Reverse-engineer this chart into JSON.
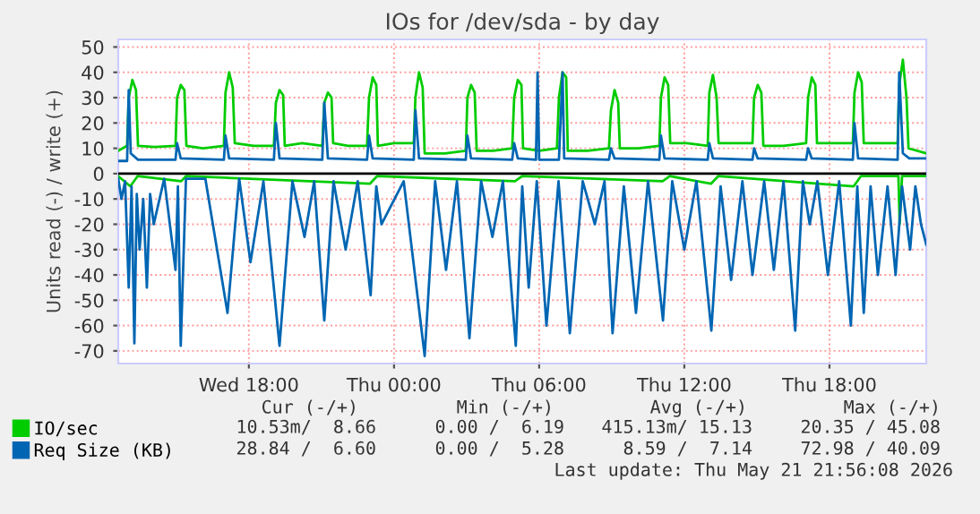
{
  "chart_data": {
    "type": "line",
    "title": "IOs for /dev/sda - by day",
    "ylabel": "Units read (-) / write (+)",
    "xlim": [
      "2026-05-20T12:36",
      "2026-05-21T22:00"
    ],
    "xticks": [
      {
        "value": "2026-05-20T18:00",
        "label": "Wed 18:00"
      },
      {
        "value": "2026-05-21T00:00",
        "label": "Thu 00:00"
      },
      {
        "value": "2026-05-21T06:00",
        "label": "Thu 06:00"
      },
      {
        "value": "2026-05-21T12:00",
        "label": "Thu 12:00"
      },
      {
        "value": "2026-05-21T18:00",
        "label": "Thu 18:00"
      }
    ],
    "ylim": [
      -75,
      53
    ],
    "yticks": [
      -70,
      -60,
      -50,
      -40,
      -30,
      -20,
      -10,
      0,
      10,
      20,
      30,
      40,
      50
    ],
    "grid": true,
    "legend": "bottom left",
    "marker": "none",
    "line_style": "solid",
    "ref_lines": [
      {
        "axis": "y",
        "value": 0,
        "color": "#000000"
      }
    ],
    "series": [
      {
        "name": "IO/sec",
        "color": "#00cc00",
        "x": [
          "2026-05-20T12:36",
          "2026-05-20T12:58",
          "2026-05-20T13:02",
          "2026-05-20T13:11",
          "2026-05-20T13:20",
          "2026-05-20T13:25",
          "2026-05-20T14:06",
          "2026-05-20T14:58",
          "2026-05-20T15:02",
          "2026-05-20T15:11",
          "2026-05-20T15:20",
          "2026-05-20T15:25",
          "2026-05-20T16:06",
          "2026-05-20T16:58",
          "2026-05-20T17:02",
          "2026-05-20T17:11",
          "2026-05-20T17:20",
          "2026-05-20T17:25",
          "2026-05-20T18:12",
          "2026-05-20T19:02",
          "2026-05-20T19:07",
          "2026-05-20T19:16",
          "2026-05-20T19:25",
          "2026-05-20T19:29",
          "2026-05-20T20:12",
          "2026-05-20T21:02",
          "2026-05-20T21:07",
          "2026-05-20T21:16",
          "2026-05-20T21:25",
          "2026-05-20T21:29",
          "2026-05-20T22:06",
          "2026-05-20T22:53",
          "2026-05-20T22:58",
          "2026-05-20T23:07",
          "2026-05-20T23:16",
          "2026-05-20T23:20",
          "2026-05-21T00:00",
          "2026-05-21T00:49",
          "2026-05-21T00:53",
          "2026-05-21T01:02",
          "2026-05-21T01:11",
          "2026-05-21T01:16",
          "2026-05-21T02:06",
          "2026-05-21T02:58",
          "2026-05-21T03:02",
          "2026-05-21T03:11",
          "2026-05-21T03:20",
          "2026-05-21T03:25",
          "2026-05-21T04:06",
          "2026-05-21T04:53",
          "2026-05-21T04:58",
          "2026-05-21T05:07",
          "2026-05-21T05:16",
          "2026-05-21T05:20",
          "2026-05-21T06:00",
          "2026-05-21T06:44",
          "2026-05-21T06:49",
          "2026-05-21T06:58",
          "2026-05-21T07:07",
          "2026-05-21T07:11",
          "2026-05-21T08:00",
          "2026-05-21T08:53",
          "2026-05-21T08:58",
          "2026-05-21T09:07",
          "2026-05-21T09:16",
          "2026-05-21T09:20",
          "2026-05-21T10:06",
          "2026-05-21T10:58",
          "2026-05-21T11:02",
          "2026-05-21T11:11",
          "2026-05-21T11:20",
          "2026-05-21T11:25",
          "2026-05-21T12:06",
          "2026-05-21T12:58",
          "2026-05-21T13:02",
          "2026-05-21T13:11",
          "2026-05-21T13:20",
          "2026-05-21T13:25",
          "2026-05-21T14:06",
          "2026-05-21T14:49",
          "2026-05-21T14:53",
          "2026-05-21T15:02",
          "2026-05-21T15:11",
          "2026-05-21T15:16",
          "2026-05-21T16:06",
          "2026-05-21T17:02",
          "2026-05-21T17:07",
          "2026-05-21T17:16",
          "2026-05-21T17:25",
          "2026-05-21T17:29",
          "2026-05-21T18:12",
          "2026-05-21T18:58",
          "2026-05-21T19:02",
          "2026-05-21T19:11",
          "2026-05-21T19:20",
          "2026-05-21T19:25",
          "2026-05-21T20:06",
          "2026-05-21T20:49",
          "2026-05-21T20:53",
          "2026-05-21T21:02",
          "2026-05-21T21:11",
          "2026-05-21T21:16",
          "2026-05-21T22:00"
        ],
        "values": [
          9,
          11,
          30,
          37,
          33,
          11,
          10.5,
          11,
          30,
          35,
          33,
          11,
          10,
          11,
          32,
          40,
          34,
          12,
          11,
          11,
          28,
          33,
          31,
          11,
          12,
          11,
          28,
          32,
          30,
          12,
          11,
          11,
          30,
          38,
          35,
          11,
          12,
          12,
          30,
          40,
          34,
          8,
          8,
          9,
          30,
          35,
          32,
          9,
          9,
          10,
          30,
          37,
          35,
          10,
          9,
          10,
          30,
          40,
          38,
          9,
          9,
          10,
          25,
          33,
          28,
          10,
          10,
          11,
          30,
          38,
          35,
          12,
          12,
          11,
          32,
          39,
          30,
          12,
          12,
          12,
          30,
          35,
          32,
          11,
          11,
          12,
          30,
          38,
          35,
          12,
          12,
          12,
          32,
          40,
          36,
          12,
          12,
          12,
          35,
          45,
          30,
          10,
          8
        ]
      },
      {
        "color": "#00cc00",
        "x": [
          "2026-05-20T12:36",
          "2026-05-20T13:06",
          "2026-05-20T13:24",
          "2026-05-20T15:12",
          "2026-05-20T15:24",
          "2026-05-20T23:00",
          "2026-05-20T23:18",
          "2026-05-21T05:00",
          "2026-05-21T05:18",
          "2026-05-21T11:06",
          "2026-05-21T11:24",
          "2026-05-21T13:06",
          "2026-05-21T13:24",
          "2026-05-21T19:00",
          "2026-05-21T19:18",
          "2026-05-21T20:51",
          "2026-05-21T20:54",
          "2026-05-21T21:00",
          "2026-05-21T22:00"
        ],
        "values": [
          -1,
          -5,
          -1,
          -3,
          -1,
          -4,
          -1,
          -3,
          -1,
          -3,
          -1,
          -4,
          -1,
          -5,
          -1,
          -1,
          -20,
          -1,
          -1
        ]
      },
      {
        "name": "Req Size (KB)",
        "color": "#0066b3",
        "x": [
          "2026-05-20T12:36",
          "2026-05-20T12:58",
          "2026-05-20T13:02",
          "2026-05-20T13:07",
          "2026-05-20T13:25",
          "2026-05-20T14:58",
          "2026-05-20T15:02",
          "2026-05-20T15:11",
          "2026-05-20T16:58",
          "2026-05-20T17:02",
          "2026-05-20T17:11",
          "2026-05-20T19:02",
          "2026-05-20T19:07",
          "2026-05-20T19:16",
          "2026-05-20T21:02",
          "2026-05-20T21:07",
          "2026-05-20T21:16",
          "2026-05-20T22:53",
          "2026-05-20T22:58",
          "2026-05-20T23:07",
          "2026-05-21T00:49",
          "2026-05-21T00:53",
          "2026-05-21T01:02",
          "2026-05-21T02:58",
          "2026-05-21T03:02",
          "2026-05-21T03:11",
          "2026-05-21T04:53",
          "2026-05-21T04:58",
          "2026-05-21T05:07",
          "2026-05-21T05:52",
          "2026-05-21T05:56",
          "2026-05-21T06:00",
          "2026-05-21T06:49",
          "2026-05-21T06:58",
          "2026-05-21T07:02",
          "2026-05-21T08:53",
          "2026-05-21T08:58",
          "2026-05-21T09:07",
          "2026-05-21T10:58",
          "2026-05-21T11:02",
          "2026-05-21T11:11",
          "2026-05-21T12:58",
          "2026-05-21T13:02",
          "2026-05-21T13:11",
          "2026-05-21T14:49",
          "2026-05-21T14:53",
          "2026-05-21T15:02",
          "2026-05-21T17:02",
          "2026-05-21T17:07",
          "2026-05-21T17:16",
          "2026-05-21T18:58",
          "2026-05-21T19:02",
          "2026-05-21T19:11",
          "2026-05-21T20:49",
          "2026-05-21T20:53",
          "2026-05-21T21:02",
          "2026-05-21T21:18",
          "2026-05-21T22:00"
        ],
        "values": [
          5,
          5,
          33,
          8,
          5.5,
          5.5,
          12,
          6,
          5.5,
          15,
          6,
          5.5,
          20,
          6,
          5.5,
          28,
          6,
          5.5,
          15,
          6,
          5.5,
          25,
          6,
          5.5,
          15,
          6,
          5.5,
          12,
          6,
          5.5,
          40,
          5.5,
          5.5,
          40,
          6,
          5.5,
          10,
          6,
          5.5,
          15,
          6,
          5.5,
          12,
          6,
          5.5,
          10,
          6,
          5.5,
          10,
          6,
          5.5,
          20,
          6,
          5.5,
          40,
          8,
          6,
          6
        ]
      },
      {
        "color": "#0066b3",
        "x": [
          "2026-05-20T12:36",
          "2026-05-20T12:44",
          "2026-05-20T12:53",
          "2026-05-20T13:02",
          "2026-05-20T13:09",
          "2026-05-20T13:16",
          "2026-05-20T13:22",
          "2026-05-20T13:29",
          "2026-05-20T13:38",
          "2026-05-20T13:47",
          "2026-05-20T13:55",
          "2026-05-20T14:04",
          "2026-05-20T14:30",
          "2026-05-20T14:58",
          "2026-05-20T15:04",
          "2026-05-20T15:11",
          "2026-05-20T15:24",
          "2026-05-20T16:12",
          "2026-05-20T17:07",
          "2026-05-20T17:36",
          "2026-05-20T18:04",
          "2026-05-20T18:36",
          "2026-05-20T19:16",
          "2026-05-20T19:48",
          "2026-05-20T20:18",
          "2026-05-20T20:42",
          "2026-05-20T21:07",
          "2026-05-20T21:30",
          "2026-05-20T22:00",
          "2026-05-20T22:30",
          "2026-05-20T23:02",
          "2026-05-20T23:16",
          "2026-05-20T23:29",
          "2026-05-21T00:24",
          "2026-05-21T01:16",
          "2026-05-21T01:42",
          "2026-05-21T02:09",
          "2026-05-21T02:36",
          "2026-05-21T03:07",
          "2026-05-21T03:36",
          "2026-05-21T04:04",
          "2026-05-21T04:30",
          "2026-05-21T05:02",
          "2026-05-21T05:18",
          "2026-05-21T05:34",
          "2026-05-21T05:54",
          "2026-05-21T06:18",
          "2026-05-21T06:48",
          "2026-05-21T07:16",
          "2026-05-21T07:48",
          "2026-05-21T08:18",
          "2026-05-21T08:42",
          "2026-05-21T09:02",
          "2026-05-21T09:30",
          "2026-05-21T10:00",
          "2026-05-21T10:30",
          "2026-05-21T11:07",
          "2026-05-21T11:30",
          "2026-05-21T12:00",
          "2026-05-21T12:30",
          "2026-05-21T13:07",
          "2026-05-21T13:30",
          "2026-05-21T13:56",
          "2026-05-21T14:24",
          "2026-05-21T14:49",
          "2026-05-21T15:18",
          "2026-05-21T15:42",
          "2026-05-21T16:06",
          "2026-05-21T16:35",
          "2026-05-21T16:54",
          "2026-05-21T17:11",
          "2026-05-21T17:30",
          "2026-05-21T17:56",
          "2026-05-21T18:24",
          "2026-05-21T18:53",
          "2026-05-21T19:09",
          "2026-05-21T19:25",
          "2026-05-21T19:42",
          "2026-05-21T20:00",
          "2026-05-21T20:24",
          "2026-05-21T20:44",
          "2026-05-21T21:00",
          "2026-05-21T21:20",
          "2026-05-21T21:33",
          "2026-05-21T21:47",
          "2026-05-21T22:00"
        ],
        "values": [
          -2,
          -10,
          -3,
          -45,
          -5,
          -67,
          -8,
          -30,
          -10,
          -45,
          -8,
          -20,
          -2,
          -38,
          -5,
          -68,
          -2,
          -2,
          -55,
          -2,
          -35,
          -3,
          -68,
          -3,
          -25,
          -3,
          -58,
          -3,
          -30,
          -3,
          -48,
          -5,
          -20,
          -3,
          -72,
          -3,
          -38,
          -3,
          -65,
          -3,
          -25,
          -3,
          -68,
          -5,
          -45,
          -3,
          -60,
          -3,
          -63,
          -3,
          -20,
          -3,
          -63,
          -5,
          -55,
          -3,
          -58,
          -3,
          -30,
          -3,
          -62,
          -5,
          -42,
          -3,
          -40,
          -3,
          -38,
          -3,
          -62,
          -3,
          -20,
          -3,
          -40,
          -3,
          -60,
          -5,
          -55,
          -5,
          -40,
          -5,
          -40,
          -5,
          -30,
          -5,
          -20,
          -28
        ]
      }
    ],
    "annotations": [
      "Cur (-/+)",
      "Min (-/+)",
      "Avg (-/+)",
      "Max (-/+)",
      "10.53m/  8.66",
      "0.00 /  6.19",
      "415.13m/ 15.13",
      "20.35 / 45.08",
      "28.84 /  6.60",
      "0.00 /  5.28",
      "8.59 /  7.14",
      "72.98 / 40.09",
      "Last update: Thu May 21 21:56:08 2026"
    ]
  }
}
